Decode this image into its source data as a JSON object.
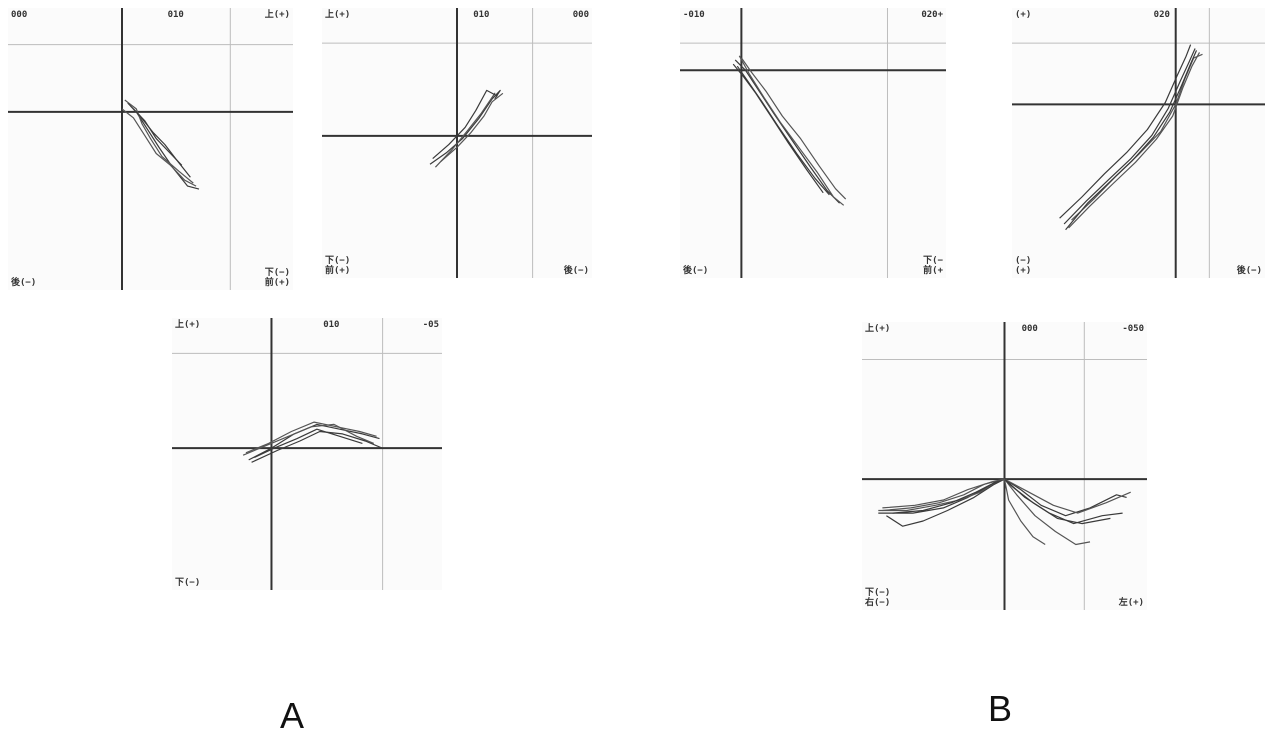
{
  "groups": {
    "a": "A",
    "b": "B"
  },
  "chart_data": [
    {
      "type": "line",
      "id": "p1",
      "labels": {
        "tl": "000",
        "tc": "010",
        "tr": "上(+)",
        "br1": "下(−)",
        "br2": "前(+)",
        "bl": "後(−)"
      },
      "xlim": [
        -4,
        6
      ],
      "ylim": [
        -6,
        3.5
      ],
      "series": [
        {
          "values": [
            [
              0.2,
              0.3
            ],
            [
              0.5,
              0
            ],
            [
              0.9,
              -0.6
            ],
            [
              1.3,
              -1.2
            ],
            [
              1.8,
              -1.9
            ],
            [
              2.3,
              -2.5
            ],
            [
              2.7,
              -2.6
            ]
          ]
        },
        {
          "values": [
            [
              0,
              0.1
            ],
            [
              0.4,
              -0.2
            ],
            [
              0.8,
              -0.8
            ],
            [
              1.2,
              -1.4
            ],
            [
              1.7,
              -1.8
            ],
            [
              2.2,
              -2.3
            ],
            [
              2.6,
              -2.5
            ]
          ]
        },
        {
          "values": [
            [
              0.3,
              0.2
            ],
            [
              0.6,
              -0.1
            ],
            [
              1.1,
              -0.7
            ],
            [
              1.5,
              -1.1
            ],
            [
              1.9,
              -1.6
            ],
            [
              2.4,
              -2.2
            ]
          ]
        },
        {
          "values": [
            [
              0.1,
              0.4
            ],
            [
              0.5,
              0.1
            ],
            [
              0.7,
              -0.4
            ],
            [
              1.0,
              -0.9
            ],
            [
              1.4,
              -1.5
            ],
            [
              2.0,
              -2.0
            ],
            [
              2.5,
              -2.4
            ]
          ]
        },
        {
          "values": [
            [
              0.4,
              0.1
            ],
            [
              0.8,
              -0.3
            ],
            [
              1.2,
              -0.9
            ],
            [
              1.6,
              -1.3
            ],
            [
              2.1,
              -1.8
            ]
          ]
        }
      ]
    },
    {
      "type": "line",
      "id": "p2",
      "labels": {
        "tl": "上(+)",
        "tc": "010",
        "tr": "000",
        "br1": "",
        "br2": "後(−)",
        "bl": "下(−)\n前(+)"
      },
      "xlim": [
        -5,
        5
      ],
      "ylim": [
        -5,
        4.5
      ],
      "series": [
        {
          "values": [
            [
              -1,
              -1
            ],
            [
              -0.4,
              -0.6
            ],
            [
              0.2,
              -0.1
            ],
            [
              0.8,
              0.6
            ],
            [
              1.3,
              1.3
            ],
            [
              1.6,
              1.6
            ],
            [
              1.4,
              1.3
            ]
          ]
        },
        {
          "values": [
            [
              -0.8,
              -1.1
            ],
            [
              -0.2,
              -0.5
            ],
            [
              0.4,
              0.2
            ],
            [
              0.9,
              0.8
            ],
            [
              1.4,
              1.5
            ],
            [
              1.2,
              1.2
            ]
          ]
        },
        {
          "values": [
            [
              -0.9,
              -0.8
            ],
            [
              -0.3,
              -0.3
            ],
            [
              0.3,
              0.3
            ],
            [
              0.7,
              0.9
            ],
            [
              1.1,
              1.6
            ],
            [
              1.5,
              1.4
            ]
          ]
        },
        {
          "values": [
            [
              -0.6,
              -0.9
            ],
            [
              0,
              -0.4
            ],
            [
              0.5,
              0.1
            ],
            [
              1.0,
              0.7
            ],
            [
              1.3,
              1.2
            ],
            [
              1.7,
              1.5
            ]
          ]
        }
      ]
    },
    {
      "type": "line",
      "id": "p3",
      "labels": {
        "tl": "-010",
        "tc": "",
        "tr": "020+",
        "br1": "下(−",
        "br2": "前(+",
        "bl": "後(−)"
      },
      "xlim": [
        -3,
        10
      ],
      "ylim": [
        -10,
        3
      ],
      "series": [
        {
          "values": [
            [
              -0.3,
              0.5
            ],
            [
              0.2,
              0
            ],
            [
              0.8,
              -0.9
            ],
            [
              1.6,
              -2.1
            ],
            [
              2.5,
              -3.4
            ],
            [
              3.4,
              -4.7
            ],
            [
              4.2,
              -5.8
            ],
            [
              4.8,
              -6.4
            ]
          ]
        },
        {
          "values": [
            [
              -0.1,
              0.7
            ],
            [
              0.4,
              -0.2
            ],
            [
              1.1,
              -1.3
            ],
            [
              1.9,
              -2.5
            ],
            [
              2.8,
              -3.7
            ],
            [
              3.7,
              -4.9
            ],
            [
              4.5,
              -6.1
            ],
            [
              5.0,
              -6.5
            ]
          ]
        },
        {
          "values": [
            [
              -0.4,
              0.3
            ],
            [
              0.1,
              -0.3
            ],
            [
              0.7,
              -1.1
            ],
            [
              1.5,
              -2.3
            ],
            [
              2.3,
              -3.5
            ],
            [
              3.2,
              -4.8
            ],
            [
              4.0,
              -5.9
            ]
          ]
        },
        {
          "values": [
            [
              0,
              0.6
            ],
            [
              0.5,
              -0.1
            ],
            [
              1.2,
              -1.0
            ],
            [
              2.0,
              -2.2
            ],
            [
              2.9,
              -3.3
            ],
            [
              3.8,
              -4.6
            ],
            [
              4.6,
              -5.7
            ],
            [
              5.1,
              -6.2
            ]
          ]
        },
        {
          "values": [
            [
              -0.2,
              0.2
            ],
            [
              0.3,
              -0.5
            ],
            [
              1.0,
              -1.5
            ],
            [
              1.8,
              -2.7
            ],
            [
              2.7,
              -4.0
            ],
            [
              3.6,
              -5.2
            ],
            [
              4.3,
              -6.0
            ]
          ]
        }
      ]
    },
    {
      "type": "line",
      "id": "p4",
      "labels": {
        "tl": "(+)",
        "tc": "020",
        "tr": "",
        "br1": "",
        "br2": "後(−)",
        "bl": "(−)\n(+)"
      },
      "xlim": [
        -11,
        6
      ],
      "ylim": [
        -9,
        5
      ],
      "series": [
        {
          "values": [
            [
              -7.5,
              -6.2
            ],
            [
              -6,
              -5
            ],
            [
              -4.5,
              -3.9
            ],
            [
              -3,
              -2.8
            ],
            [
              -1.6,
              -1.6
            ],
            [
              -0.5,
              -0.2
            ],
            [
              0.3,
              1.2
            ],
            [
              0.9,
              2.2
            ],
            [
              1.3,
              2.9
            ]
          ]
        },
        {
          "values": [
            [
              -7.2,
              -6.4
            ],
            [
              -5.8,
              -5.3
            ],
            [
              -4.2,
              -4.1
            ],
            [
              -2.7,
              -3
            ],
            [
              -1.3,
              -1.8
            ],
            [
              -0.2,
              -0.6
            ],
            [
              0.5,
              0.9
            ],
            [
              1.1,
              2.0
            ],
            [
              1.6,
              2.7
            ]
          ]
        },
        {
          "values": [
            [
              -7.8,
              -5.9
            ],
            [
              -6.3,
              -4.8
            ],
            [
              -4.8,
              -3.6
            ],
            [
              -3.3,
              -2.5
            ],
            [
              -1.9,
              -1.3
            ],
            [
              -0.7,
              0.1
            ],
            [
              0.1,
              1.5
            ],
            [
              0.7,
              2.5
            ],
            [
              1.0,
              3.1
            ]
          ]
        },
        {
          "values": [
            [
              -7.0,
              -6.0
            ],
            [
              -5.5,
              -4.9
            ],
            [
              -4.0,
              -3.7
            ],
            [
              -2.5,
              -2.6
            ],
            [
              -1.0,
              -1.4
            ],
            [
              0,
              0
            ],
            [
              0.6,
              1.3
            ],
            [
              1.2,
              2.4
            ],
            [
              1.8,
              2.6
            ]
          ]
        },
        {
          "values": [
            [
              -7.4,
              -6.5
            ],
            [
              -5.9,
              -5.1
            ],
            [
              -4.4,
              -4.0
            ],
            [
              -2.9,
              -2.9
            ],
            [
              -1.5,
              -1.7
            ],
            [
              -0.4,
              -0.4
            ],
            [
              0.4,
              1.0
            ],
            [
              1.0,
              2.1
            ],
            [
              1.4,
              2.8
            ]
          ]
        }
      ]
    },
    {
      "type": "line",
      "id": "p5",
      "labels": {
        "tl": "上(+)",
        "tc": "010",
        "tr": "-05",
        "br1": "",
        "br2": "",
        "bl": "下(−)"
      },
      "xlim": [
        -3.5,
        6
      ],
      "ylim": [
        -6,
        5.5
      ],
      "series": [
        {
          "values": [
            [
              -0.8,
              -0.5
            ],
            [
              0,
              0
            ],
            [
              0.8,
              0.6
            ],
            [
              1.6,
              1.0
            ],
            [
              2.4,
              0.8
            ],
            [
              3.2,
              0.6
            ],
            [
              3.8,
              0.4
            ]
          ]
        },
        {
          "values": [
            [
              -1.0,
              -0.3
            ],
            [
              -0.2,
              0.1
            ],
            [
              0.6,
              0.5
            ],
            [
              1.4,
              0.9
            ],
            [
              2.2,
              1.0
            ],
            [
              3.0,
              0.5
            ],
            [
              3.6,
              0.2
            ]
          ]
        },
        {
          "values": [
            [
              -0.7,
              -0.6
            ],
            [
              0.2,
              -0.1
            ],
            [
              1.0,
              0.3
            ],
            [
              1.7,
              0.7
            ],
            [
              2.5,
              0.6
            ],
            [
              3.3,
              0.3
            ],
            [
              3.9,
              0.0
            ]
          ]
        },
        {
          "values": [
            [
              -0.9,
              -0.2
            ],
            [
              -0.1,
              0.2
            ],
            [
              0.7,
              0.7
            ],
            [
              1.5,
              1.1
            ],
            [
              2.3,
              0.9
            ],
            [
              3.1,
              0.7
            ],
            [
              3.7,
              0.5
            ]
          ]
        },
        {
          "values": [
            [
              -0.6,
              -0.4
            ],
            [
              0.1,
              0.0
            ],
            [
              0.9,
              0.4
            ],
            [
              1.6,
              0.8
            ],
            [
              2.4,
              0.5
            ],
            [
              3.2,
              0.2
            ]
          ]
        }
      ]
    },
    {
      "type": "line",
      "id": "p6",
      "labels": {
        "tl": "上(+)",
        "tc": "000",
        "tr": "-050",
        "br1": "",
        "br2": "左(+)",
        "bl": "下(−)\n右(−)"
      },
      "xlim": [
        -70,
        70
      ],
      "ylim": [
        -50,
        60
      ],
      "series": [
        {
          "values": [
            [
              -62,
              -13
            ],
            [
              -45,
              -13
            ],
            [
              -30,
              -11
            ],
            [
              -18,
              -7
            ],
            [
              -8,
              -3
            ],
            [
              0,
              0
            ],
            [
              8,
              -4
            ],
            [
              18,
              -10
            ],
            [
              30,
              -14
            ],
            [
              42,
              -11
            ],
            [
              55,
              -6
            ],
            [
              60,
              -7
            ]
          ]
        },
        {
          "values": [
            [
              -60,
              -12
            ],
            [
              -46,
              -11
            ],
            [
              -32,
              -9
            ],
            [
              -20,
              -6
            ],
            [
              -10,
              -2
            ],
            [
              0,
              0
            ],
            [
              6,
              -6
            ],
            [
              15,
              -14
            ],
            [
              25,
              -20
            ],
            [
              35,
              -25
            ],
            [
              42,
              -24
            ]
          ]
        },
        {
          "values": [
            [
              -58,
              -14
            ],
            [
              -50,
              -18
            ],
            [
              -40,
              -16
            ],
            [
              -28,
              -12
            ],
            [
              -15,
              -7
            ],
            [
              -5,
              -2
            ],
            [
              0,
              0
            ],
            [
              10,
              -7
            ],
            [
              22,
              -13
            ],
            [
              34,
              -17
            ],
            [
              48,
              -14
            ],
            [
              58,
              -13
            ]
          ]
        },
        {
          "values": [
            [
              -62,
              -12
            ],
            [
              -48,
              -12
            ],
            [
              -34,
              -10
            ],
            [
              -22,
              -8
            ],
            [
              -12,
              -5
            ],
            [
              -4,
              -1
            ],
            [
              0,
              0
            ],
            [
              12,
              -5
            ],
            [
              24,
              -10
            ],
            [
              36,
              -13
            ],
            [
              50,
              -9
            ],
            [
              62,
              -5
            ]
          ]
        },
        {
          "values": [
            [
              -55,
              -13
            ],
            [
              -40,
              -12
            ],
            [
              -26,
              -9
            ],
            [
              -14,
              -5
            ],
            [
              -4,
              -1
            ],
            [
              0,
              0
            ],
            [
              4,
              -3
            ],
            [
              14,
              -9
            ],
            [
              26,
              -15
            ],
            [
              38,
              -17
            ],
            [
              52,
              -15
            ]
          ]
        },
        {
          "values": [
            [
              -60,
              -11
            ],
            [
              -44,
              -10
            ],
            [
              -30,
              -8
            ],
            [
              -18,
              -4
            ],
            [
              -6,
              -1
            ],
            [
              0,
              0
            ],
            [
              2,
              -8
            ],
            [
              8,
              -16
            ],
            [
              14,
              -22
            ],
            [
              20,
              -25
            ]
          ]
        }
      ]
    }
  ]
}
